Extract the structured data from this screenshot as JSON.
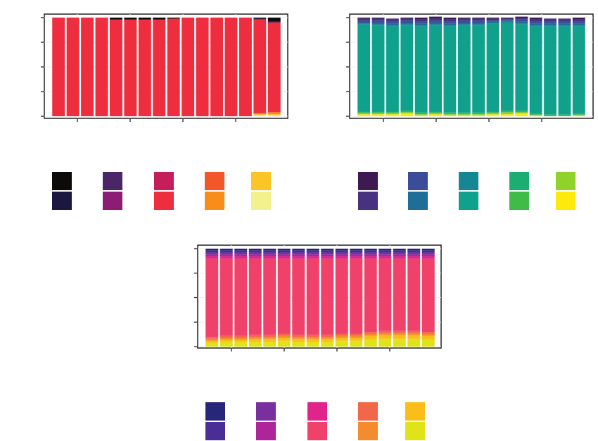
{
  "chart_data": [
    {
      "type": "bar",
      "stacked": "percent",
      "ylim": [
        0,
        1
      ],
      "grid": true,
      "legend": "below",
      "colors": [
        "#0d0b0a",
        "#1b1740",
        "#4a2668",
        "#8c1c74",
        "#c41e5b",
        "#ee2d3e",
        "#f2572a",
        "#f98d1c",
        "#fbc427",
        "#f3f18e"
      ],
      "series_values": [
        [
          0.0,
          0.0,
          0.0,
          0.0,
          0.02,
          0.02,
          0.02,
          0.02,
          0.01,
          0.0,
          0.0,
          0.0,
          0.0,
          0.0,
          0.01,
          0.04
        ],
        [
          0.0,
          0.0,
          0.0,
          0.0,
          0.0,
          0.0,
          0.0,
          0.0,
          0.0,
          0.0,
          0.0,
          0.0,
          0.0,
          0.0,
          0.0,
          0.0
        ],
        [
          0.0,
          0.0,
          0.0,
          0.0,
          0.0,
          0.0,
          0.0,
          0.0,
          0.0,
          0.0,
          0.0,
          0.0,
          0.0,
          0.0,
          0.01,
          0.01
        ],
        [
          0.0,
          0.0,
          0.0,
          0.0,
          0.0,
          0.0,
          0.0,
          0.0,
          0.0,
          0.0,
          0.0,
          0.0,
          0.0,
          0.0,
          0.0,
          0.0
        ],
        [
          0.0,
          0.0,
          0.0,
          0.0,
          0.0,
          0.0,
          0.0,
          0.0,
          0.0,
          0.0,
          0.0,
          0.0,
          0.0,
          0.0,
          0.0,
          0.0
        ],
        [
          1.0,
          1.0,
          1.0,
          1.0,
          0.98,
          0.98,
          0.98,
          0.98,
          0.99,
          1.0,
          1.0,
          1.0,
          1.0,
          1.0,
          0.95,
          0.91
        ],
        [
          0.0,
          0.0,
          0.0,
          0.0,
          0.0,
          0.0,
          0.0,
          0.0,
          0.0,
          0.0,
          0.0,
          0.0,
          0.0,
          0.0,
          0.0,
          0.0
        ],
        [
          0.0,
          0.0,
          0.0,
          0.0,
          0.0,
          0.0,
          0.0,
          0.0,
          0.0,
          0.0,
          0.0,
          0.0,
          0.0,
          0.0,
          0.01,
          0.02
        ],
        [
          0.0,
          0.0,
          0.0,
          0.0,
          0.0,
          0.0,
          0.0,
          0.0,
          0.0,
          0.0,
          0.0,
          0.0,
          0.0,
          0.0,
          0.01,
          0.01
        ],
        [
          0.0,
          0.0,
          0.0,
          0.0,
          0.0,
          0.0,
          0.0,
          0.0,
          0.0,
          0.0,
          0.0,
          0.0,
          0.0,
          0.0,
          0.01,
          0.01
        ]
      ]
    },
    {
      "type": "bar",
      "stacked": "percent",
      "ylim": [
        0,
        1
      ],
      "grid": true,
      "legend": "below",
      "colors": [
        "#3f1a52",
        "#46327f",
        "#3b4c99",
        "#1f6e98",
        "#158694",
        "#0fa18b",
        "#1aae72",
        "#3fbb47",
        "#90d12a",
        "#fde90c"
      ],
      "series_values": [
        [
          0.01,
          0.01,
          0.01,
          0.01,
          0.02,
          0.02,
          0.02,
          0.01,
          0.01,
          0.01,
          0.01,
          0.01,
          0.02,
          0.01,
          0.01,
          0.02
        ],
        [
          0.02,
          0.02,
          0.02,
          0.02,
          0.02,
          0.02,
          0.02,
          0.02,
          0.02,
          0.02,
          0.01,
          0.02,
          0.02,
          0.02,
          0.02,
          0.02
        ],
        [
          0.02,
          0.02,
          0.02,
          0.02,
          0.02,
          0.02,
          0.02,
          0.02,
          0.02,
          0.01,
          0.01,
          0.02,
          0.02,
          0.02,
          0.02,
          0.02
        ],
        [
          0.01,
          0.02,
          0.02,
          0.02,
          0.02,
          0.02,
          0.02,
          0.02,
          0.02,
          0.01,
          0.01,
          0.02,
          0.02,
          0.02,
          0.02,
          0.02
        ],
        [
          0.01,
          0.01,
          0.01,
          0.01,
          0.01,
          0.01,
          0.01,
          0.01,
          0.01,
          0.01,
          0.01,
          0.01,
          0.01,
          0.01,
          0.01,
          0.01
        ],
        [
          0.88,
          0.87,
          0.86,
          0.86,
          0.87,
          0.87,
          0.87,
          0.88,
          0.88,
          0.89,
          0.89,
          0.87,
          0.88,
          0.89,
          0.89,
          0.88
        ],
        [
          0.01,
          0.01,
          0.01,
          0.01,
          0.01,
          0.01,
          0.01,
          0.01,
          0.01,
          0.01,
          0.01,
          0.01,
          0.01,
          0.01,
          0.01,
          0.01
        ],
        [
          0.01,
          0.01,
          0.01,
          0.01,
          0.01,
          0.01,
          0.01,
          0.01,
          0.01,
          0.01,
          0.01,
          0.01,
          0.01,
          0.01,
          0.01,
          0.01
        ],
        [
          0.01,
          0.01,
          0.01,
          0.01,
          0.01,
          0.01,
          0.01,
          0.01,
          0.01,
          0.01,
          0.02,
          0.01,
          0.0,
          0.0,
          0.0,
          0.0
        ],
        [
          0.02,
          0.02,
          0.02,
          0.03,
          0.01,
          0.02,
          0.01,
          0.01,
          0.01,
          0.02,
          0.02,
          0.03,
          0.01,
          0.0,
          0.0,
          0.01
        ]
      ]
    },
    {
      "type": "bar",
      "stacked": "percent",
      "ylim": [
        0,
        1
      ],
      "grid": true,
      "legend": "below",
      "colors": [
        "#27277a",
        "#4a2d95",
        "#7a2f9e",
        "#ac2699",
        "#e0248b",
        "#f0416b",
        "#f26749",
        "#f58b2f",
        "#fbbd17",
        "#dfe318"
      ],
      "series_values": [
        [
          0.02,
          0.02,
          0.02,
          0.02,
          0.02,
          0.02,
          0.02,
          0.02,
          0.02,
          0.02,
          0.02,
          0.02,
          0.02,
          0.02,
          0.02,
          0.02
        ],
        [
          0.02,
          0.02,
          0.02,
          0.02,
          0.02,
          0.02,
          0.02,
          0.02,
          0.02,
          0.02,
          0.02,
          0.02,
          0.02,
          0.02,
          0.02,
          0.02
        ],
        [
          0.02,
          0.02,
          0.02,
          0.02,
          0.02,
          0.02,
          0.02,
          0.02,
          0.02,
          0.02,
          0.02,
          0.02,
          0.02,
          0.02,
          0.02,
          0.02
        ],
        [
          0.02,
          0.02,
          0.02,
          0.02,
          0.02,
          0.02,
          0.02,
          0.02,
          0.02,
          0.02,
          0.02,
          0.02,
          0.02,
          0.02,
          0.02,
          0.02
        ],
        [
          0.02,
          0.02,
          0.02,
          0.02,
          0.02,
          0.02,
          0.02,
          0.02,
          0.02,
          0.02,
          0.02,
          0.02,
          0.02,
          0.02,
          0.02,
          0.02
        ],
        [
          0.8,
          0.79,
          0.79,
          0.78,
          0.78,
          0.77,
          0.78,
          0.78,
          0.78,
          0.77,
          0.77,
          0.75,
          0.74,
          0.74,
          0.74,
          0.75
        ],
        [
          0.02,
          0.02,
          0.02,
          0.02,
          0.02,
          0.02,
          0.02,
          0.02,
          0.02,
          0.02,
          0.02,
          0.02,
          0.02,
          0.02,
          0.02,
          0.02
        ],
        [
          0.02,
          0.02,
          0.02,
          0.02,
          0.02,
          0.02,
          0.02,
          0.02,
          0.02,
          0.02,
          0.02,
          0.02,
          0.02,
          0.02,
          0.02,
          0.02
        ],
        [
          0.02,
          0.02,
          0.02,
          0.03,
          0.03,
          0.03,
          0.03,
          0.03,
          0.03,
          0.03,
          0.03,
          0.04,
          0.04,
          0.04,
          0.04,
          0.04
        ],
        [
          0.04,
          0.05,
          0.05,
          0.05,
          0.05,
          0.06,
          0.05,
          0.05,
          0.05,
          0.06,
          0.06,
          0.07,
          0.08,
          0.08,
          0.08,
          0.07
        ]
      ]
    }
  ]
}
